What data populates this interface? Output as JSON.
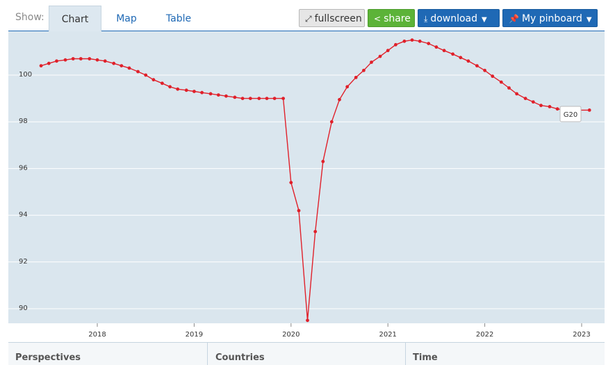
{
  "toolbar": {
    "show_label": "Show:",
    "tabs": [
      "Chart",
      "Map",
      "Table"
    ],
    "fullscreen_label": "fullscreen",
    "share_label": "share",
    "download_label": "download",
    "pinboard_label": "My pinboard"
  },
  "colors": {
    "series": "#e0202a",
    "plot_bg": "#dae6ee",
    "accent": "#1f69b5",
    "share": "#5cb338"
  },
  "chart_data": {
    "type": "line",
    "title": "",
    "xlabel": "",
    "ylabel": "",
    "x_ticks": [
      "2018",
      "2019",
      "2020",
      "2021",
      "2022",
      "2023"
    ],
    "y_ticks": [
      "90",
      "92",
      "94",
      "96",
      "98",
      "100"
    ],
    "ylim": [
      89.5,
      102
    ],
    "xlim": [
      2017.3,
      2023.18
    ],
    "grid": "horizontal",
    "series": [
      {
        "name": "G20",
        "x": [
          2017.42,
          2017.5,
          2017.58,
          2017.67,
          2017.75,
          2017.83,
          2017.92,
          2018.0,
          2018.08,
          2018.17,
          2018.25,
          2018.33,
          2018.42,
          2018.5,
          2018.58,
          2018.67,
          2018.75,
          2018.83,
          2018.92,
          2019.0,
          2019.08,
          2019.17,
          2019.25,
          2019.33,
          2019.42,
          2019.5,
          2019.58,
          2019.67,
          2019.75,
          2019.83,
          2019.92,
          2020.0,
          2020.08,
          2020.17,
          2020.25,
          2020.33,
          2020.42,
          2020.5,
          2020.58,
          2020.67,
          2020.75,
          2020.83,
          2020.92,
          2021.0,
          2021.08,
          2021.17,
          2021.25,
          2021.33,
          2021.42,
          2021.5,
          2021.58,
          2021.67,
          2021.75,
          2021.83,
          2021.92,
          2022.0,
          2022.08,
          2022.17,
          2022.25,
          2022.33,
          2022.42,
          2022.5,
          2022.58,
          2022.67,
          2022.75,
          2022.83,
          2023.08
        ],
        "y": [
          100.4,
          100.5,
          100.6,
          100.65,
          100.7,
          100.7,
          100.7,
          100.65,
          100.6,
          100.5,
          100.4,
          100.3,
          100.15,
          100.0,
          99.8,
          99.65,
          99.5,
          99.4,
          99.35,
          99.3,
          99.25,
          99.2,
          99.15,
          99.1,
          99.05,
          99.0,
          99.0,
          99.0,
          99.0,
          99.0,
          99.0,
          95.4,
          94.2,
          89.5,
          93.3,
          96.3,
          98.0,
          98.95,
          99.5,
          99.9,
          100.2,
          100.55,
          100.8,
          101.05,
          101.3,
          101.45,
          101.5,
          101.45,
          101.35,
          101.2,
          101.05,
          100.9,
          100.75,
          100.6,
          100.4,
          100.2,
          99.95,
          99.7,
          99.45,
          99.2,
          99.0,
          98.85,
          98.7,
          98.65,
          98.55,
          98.5,
          98.5
        ]
      }
    ],
    "series_label": "G20"
  },
  "bottom": {
    "perspectives": "Perspectives",
    "countries": "Countries",
    "time": "Time"
  },
  "footer": {
    "copyright": "©"
  }
}
